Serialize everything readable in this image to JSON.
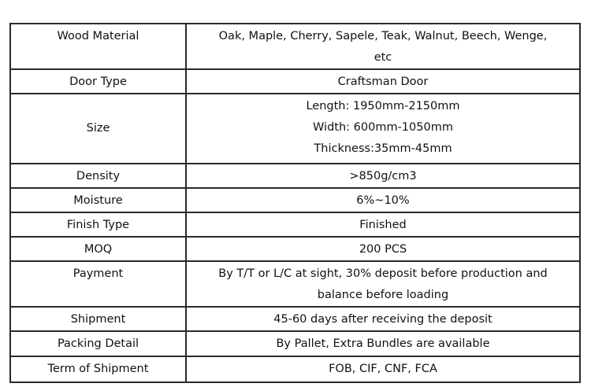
{
  "rows": [
    {
      "label": "Wood Material",
      "value": [
        "Oak, Maple, Cherry, Sapele, Teak, Walnut, Beech, Wenge,",
        "etc"
      ]
    },
    {
      "label": "Door Type",
      "value": [
        "Craftsman Door"
      ]
    },
    {
      "label": "Size",
      "value": [
        "Length: 1950mm-2150mm",
        "Width: 600mm-1050mm",
        "Thickness:35mm-45mm"
      ]
    },
    {
      "label": "Density",
      "value": [
        ">850g/cm3"
      ]
    },
    {
      "label": "Moisture",
      "value": [
        "6%~10%"
      ]
    },
    {
      "label": "Finish Type",
      "value": [
        "Finished"
      ]
    },
    {
      "label": "MOQ",
      "value": [
        "200 PCS"
      ]
    },
    {
      "label": "Payment",
      "value": [
        "By T/T or L/C at sight, 30% deposit before production and",
        "balance before loading"
      ]
    },
    {
      "label": "Shipment",
      "value": [
        "45-60 days after receiving the deposit"
      ]
    },
    {
      "label": "Packing Detail",
      "value": [
        "By Pallet, Extra Bundles are available"
      ]
    },
    {
      "label": "Term of Shipment",
      "value": [
        "FOB, CIF, CNF, FCA"
      ]
    }
  ]
}
